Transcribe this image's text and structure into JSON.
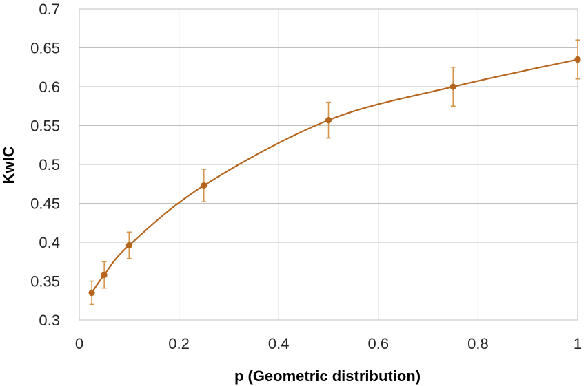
{
  "chart_data": {
    "type": "line",
    "title": "",
    "xlabel": "p (Geometric distribution)",
    "ylabel": "KwIC",
    "xlim": [
      0,
      1
    ],
    "ylim": [
      0.3,
      0.7
    ],
    "xticks": [
      0,
      0.2,
      0.4,
      0.6,
      0.8,
      1
    ],
    "yticks": [
      0.3,
      0.35,
      0.4,
      0.45,
      0.5,
      0.55,
      0.6,
      0.65,
      0.7
    ],
    "xtick_labels": [
      "0",
      "0.2",
      "0.4",
      "0.6",
      "0.8",
      "1"
    ],
    "ytick_labels": [
      "0.3",
      "0.35",
      "0.4",
      "0.45",
      "0.5",
      "0.55",
      "0.6",
      "0.65",
      "0.7"
    ],
    "grid": true,
    "series": [
      {
        "color": "#b5651d",
        "error_color": "#d4954a",
        "x": [
          0.025,
          0.05,
          0.1,
          0.25,
          0.5,
          0.75,
          1.0
        ],
        "y": [
          0.335,
          0.358,
          0.396,
          0.473,
          0.557,
          0.6,
          0.635
        ],
        "error": [
          0.015,
          0.017,
          0.017,
          0.021,
          0.023,
          0.025,
          0.025
        ]
      }
    ]
  }
}
